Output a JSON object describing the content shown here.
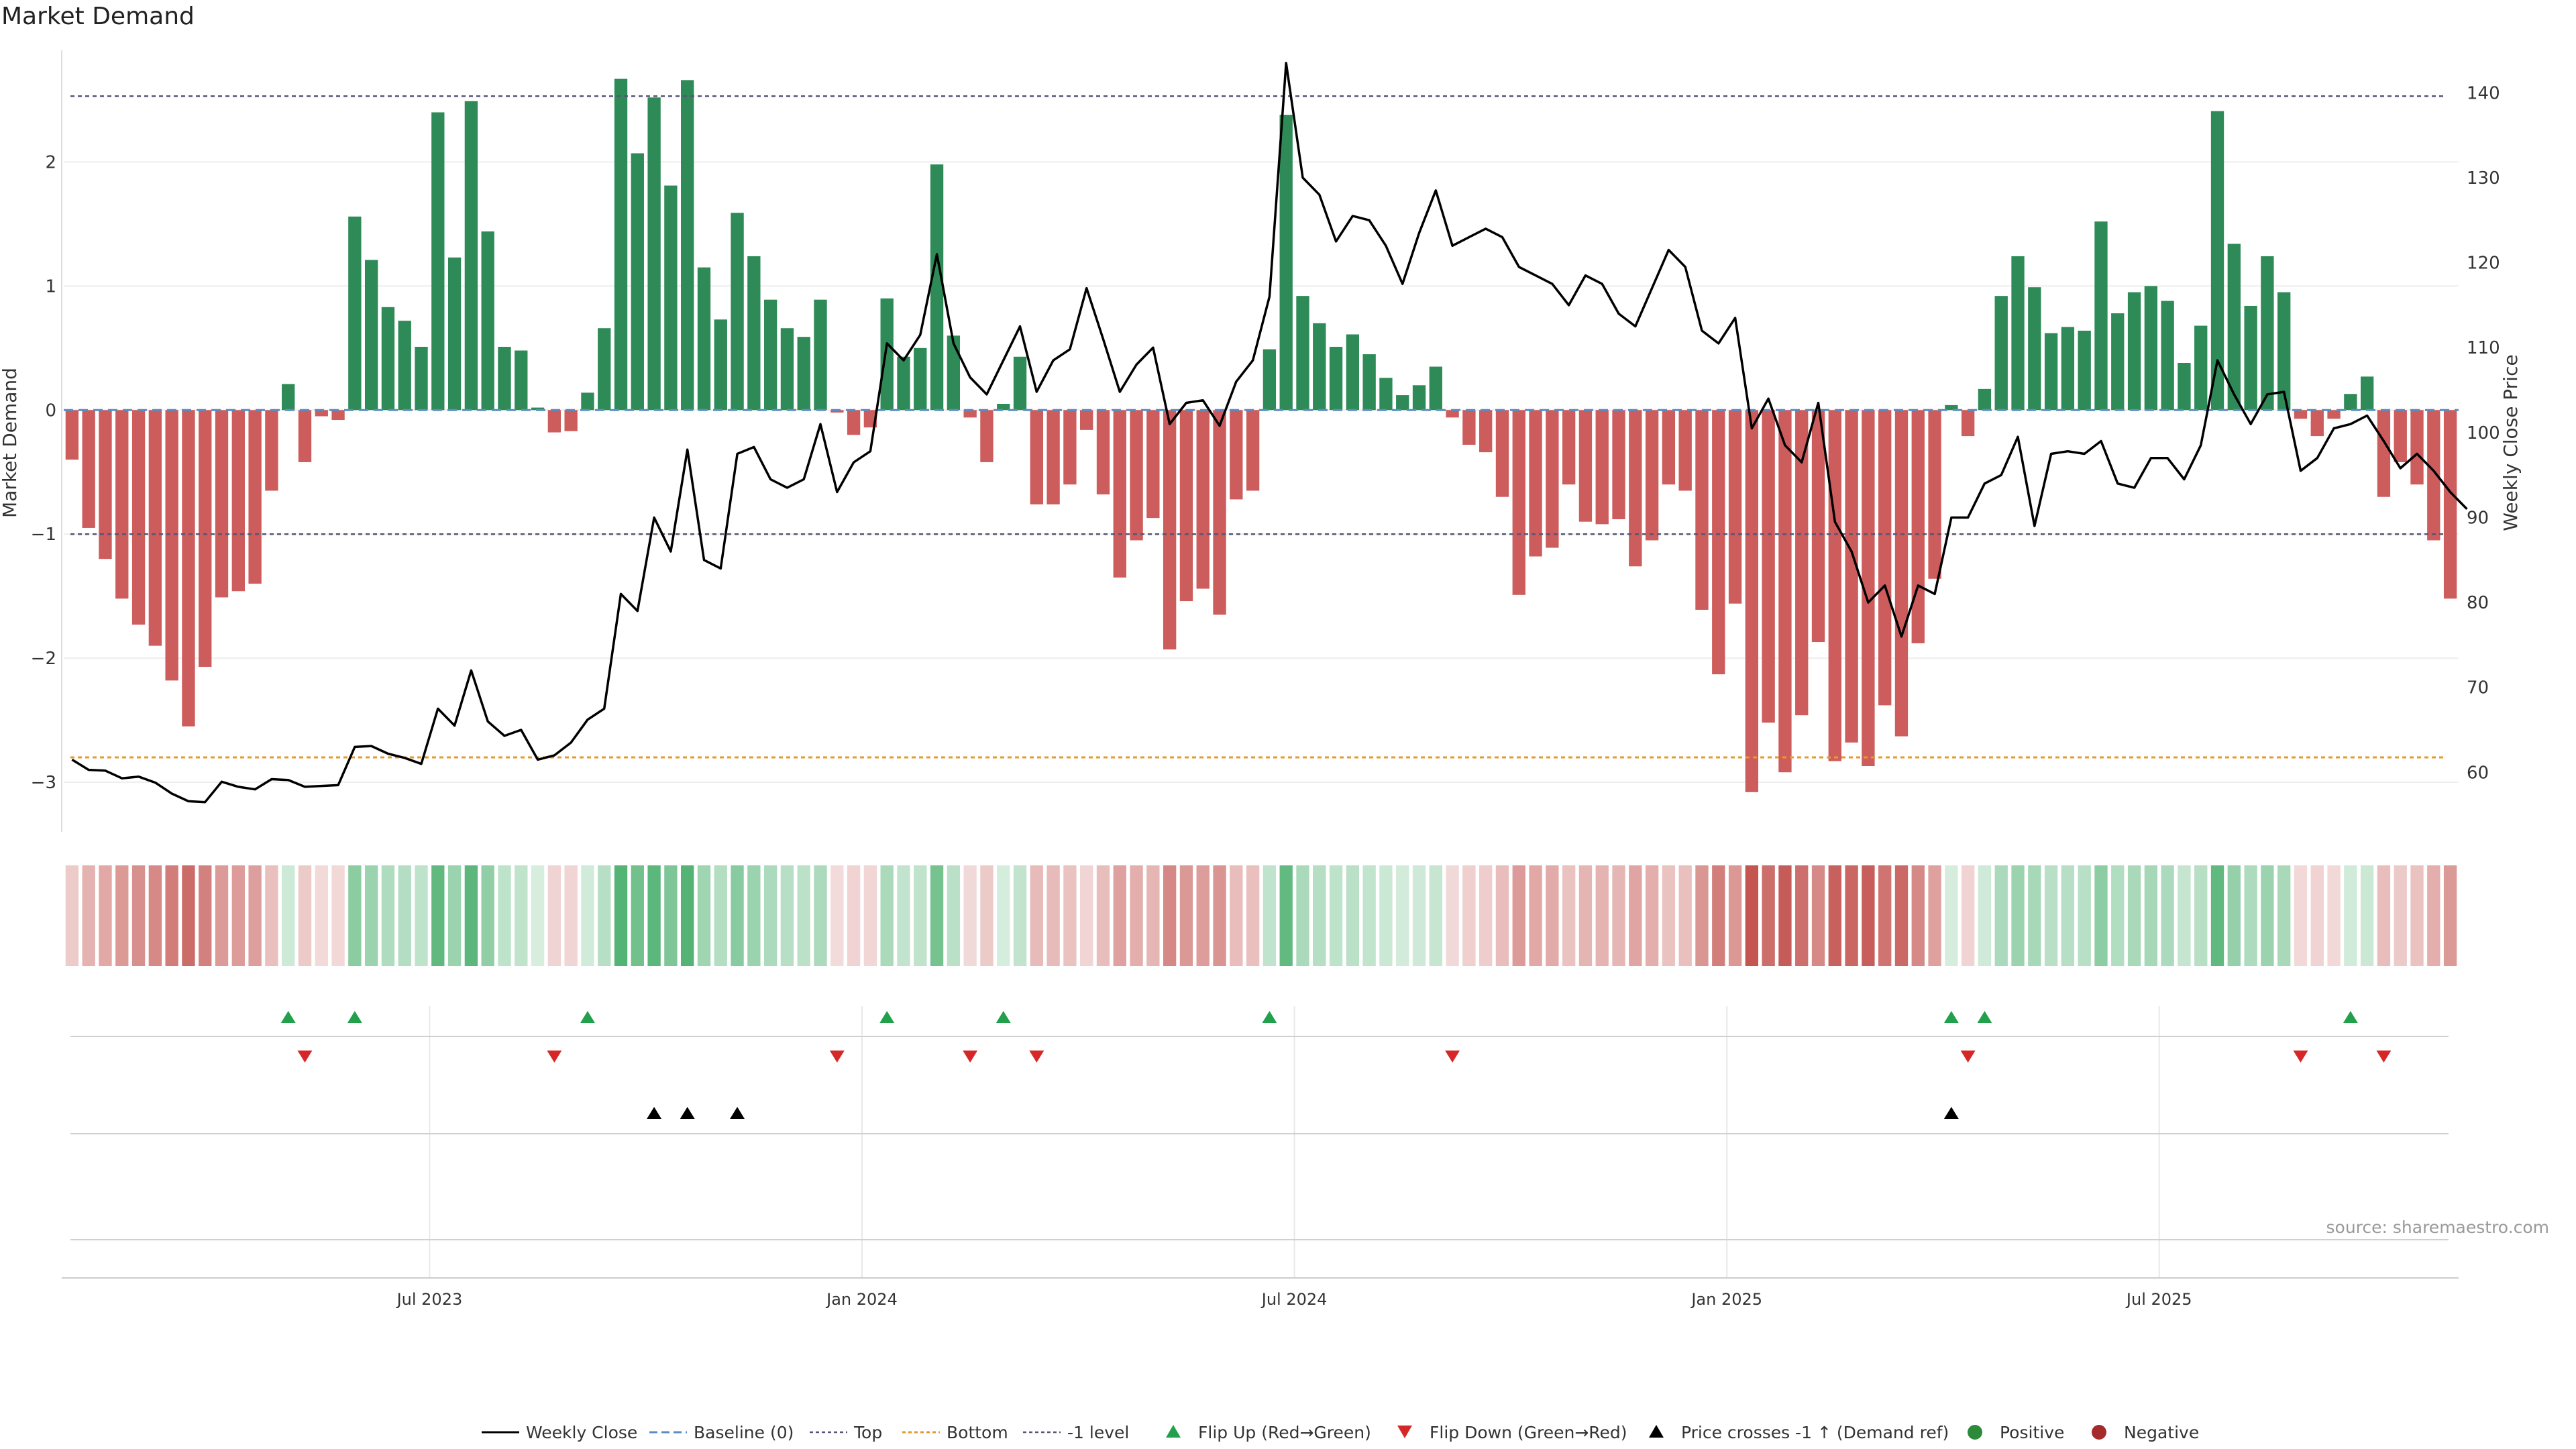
{
  "chart_data": {
    "type": "bar",
    "title": "Market Demand",
    "ylabel_left": "Market Demand",
    "ylabel_right": "Weekly Close Price",
    "source": "source: sharemaestro.com",
    "x_ticks": [
      "Jul 2023",
      "Jan 2024",
      "Jul 2024",
      "Jan 2025",
      "Jul 2025"
    ],
    "x_tick_weeks": [
      22,
      48,
      74,
      100,
      126
    ],
    "y_left_ticks": [
      "2",
      "1",
      "0",
      "−1",
      "−2",
      "−3"
    ],
    "y_left_values": [
      2,
      1,
      0,
      -1,
      -2,
      -3
    ],
    "y_right_ticks": [
      "140",
      "130",
      "120",
      "110",
      "100",
      "90",
      "80",
      "70",
      "60"
    ],
    "y_right_values": [
      140,
      130,
      120,
      110,
      100,
      90,
      80,
      70,
      60
    ],
    "ylim_left": [
      -3.4,
      2.9
    ],
    "ylim_right": [
      53,
      145
    ],
    "levels": {
      "top": 2.53,
      "bottom": -2.8,
      "minus_one": -1
    },
    "colors": {
      "positive": "#2e8b57",
      "negative": "#cd5c5c",
      "price": "#000000",
      "flip_up": "#22a04b",
      "flip_down": "#d62728",
      "top": "#555577",
      "bottom": "#e69a2e",
      "baseline": "#5b8cc4"
    },
    "demand": [
      -0.4,
      -0.95,
      -1.2,
      -1.52,
      -1.73,
      -1.9,
      -2.18,
      -2.55,
      -2.07,
      -1.51,
      -1.46,
      -1.4,
      -0.65,
      0.21,
      -0.42,
      -0.05,
      -0.08,
      1.56,
      1.21,
      0.83,
      0.72,
      0.51,
      2.4,
      1.23,
      2.49,
      1.44,
      0.51,
      0.48,
      0.02,
      -0.18,
      -0.17,
      0.14,
      0.66,
      2.67,
      2.07,
      2.52,
      1.81,
      2.66,
      1.15,
      0.73,
      1.59,
      1.24,
      0.89,
      0.66,
      0.59,
      0.89,
      -0.02,
      -0.2,
      -0.14,
      0.9,
      0.43,
      0.5,
      1.98,
      0.6,
      -0.06,
      -0.42,
      0.05,
      0.43,
      -0.76,
      -0.76,
      -0.6,
      -0.16,
      -0.68,
      -1.35,
      -1.05,
      -0.87,
      -1.93,
      -1.54,
      -1.44,
      -1.65,
      -0.72,
      -0.65,
      0.49,
      2.38,
      0.92,
      0.7,
      0.51,
      0.61,
      0.45,
      0.26,
      0.12,
      0.2,
      0.35,
      -0.06,
      -0.28,
      -0.34,
      -0.7,
      -1.49,
      -1.18,
      -1.11,
      -0.6,
      -0.9,
      -0.92,
      -0.88,
      -1.26,
      -1.05,
      -0.6,
      -0.65,
      -1.61,
      -2.13,
      -1.56,
      -3.08,
      -2.52,
      -2.92,
      -2.46,
      -1.87,
      -2.83,
      -2.68,
      -2.87,
      -2.38,
      -2.63,
      -1.88,
      -1.36,
      0.04,
      -0.21,
      0.17,
      0.92,
      1.24,
      0.99,
      0.62,
      0.67,
      0.64,
      1.52,
      0.78,
      0.95,
      1.0,
      0.88,
      0.38,
      0.68,
      2.41,
      1.34,
      0.84,
      1.24,
      0.95,
      -0.07,
      -0.21,
      -0.07,
      0.13,
      0.27,
      -0.7,
      -0.42,
      -0.6,
      -1.05,
      -1.52
    ],
    "price": [
      61.5,
      60.3,
      60.2,
      59.3,
      59.5,
      58.8,
      57.5,
      56.6,
      56.5,
      58.9,
      58.3,
      58.0,
      59.2,
      59.1,
      58.3,
      58.4,
      58.5,
      63.0,
      63.1,
      62.2,
      61.7,
      61.0,
      67.5,
      65.5,
      72.0,
      66.0,
      64.3,
      65.0,
      61.5,
      62.0,
      63.5,
      66.2,
      67.5,
      81.0,
      79.0,
      90.0,
      86.0,
      98.0,
      85.0,
      84.0,
      97.5,
      98.3,
      94.5,
      93.5,
      94.5,
      101.0,
      93.0,
      96.5,
      97.8,
      110.5,
      108.5,
      111.5,
      121.0,
      110.5,
      106.5,
      104.5,
      108.5,
      112.5,
      104.8,
      108.5,
      109.8,
      117.0,
      111.0,
      104.8,
      108.0,
      110.0,
      101.0,
      103.5,
      103.8,
      100.8,
      106.0,
      108.5,
      116.0,
      143.5,
      130.0,
      128.0,
      122.5,
      125.5,
      125.0,
      122.0,
      117.5,
      123.5,
      128.5,
      122.0,
      123.0,
      124.0,
      123.0,
      119.5,
      118.5,
      117.5,
      115.0,
      118.5,
      117.5,
      114.0,
      112.5,
      117.0,
      121.5,
      119.5,
      112.0,
      110.5,
      113.5,
      100.5,
      104.0,
      98.5,
      96.5,
      103.5,
      89.5,
      86.0,
      80.0,
      82.0,
      76.0,
      82.0,
      81.0,
      90.0,
      90.0,
      94.0,
      95.0,
      99.5,
      89.0,
      97.5,
      97.8,
      97.5,
      99.0,
      94.0,
      93.5,
      97.0,
      97.0,
      94.5,
      98.5,
      108.5,
      104.5,
      101.0,
      104.5,
      104.8,
      95.5,
      97.0,
      100.5,
      101.0,
      102.0,
      99.0,
      95.8,
      97.5,
      95.5,
      93.0,
      91.0
    ],
    "flip_up_weeks": [
      13,
      17,
      31,
      49,
      56,
      72,
      113,
      115,
      137
    ],
    "flip_down_weeks": [
      14,
      29,
      46,
      54,
      58,
      83,
      114,
      134,
      139
    ],
    "price_cross_weeks": [
      35,
      37,
      40,
      113
    ],
    "legend": [
      "Weekly Close",
      "Baseline (0)",
      "Top",
      "Bottom",
      "-1 level",
      "Flip Up (Red→Green)",
      "Flip Down (Green→Red)",
      "Price crosses -1 ↑ (Demand ref)",
      "Positive",
      "Negative"
    ]
  }
}
